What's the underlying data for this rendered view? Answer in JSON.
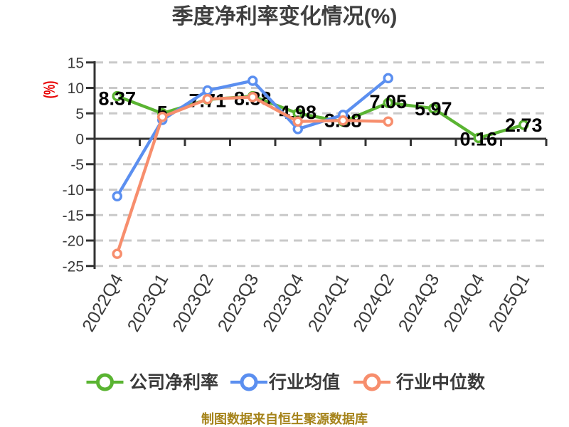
{
  "title": "季度净利率变化情况(%)",
  "y_axis_unit": "(%)",
  "caption": "制图数据来自恒生聚源数据库",
  "colors": {
    "company": "#5ab432",
    "industry_avg": "#5b8ff0",
    "industry_median": "#f78e6d",
    "grid": "#c9c9c9",
    "axis": "#333333",
    "tick_text": "#3a3a3a",
    "value_text": "#000000",
    "title_text": "#3f3f3f",
    "ylabel_text": "#e80000",
    "caption_text": "#a5831a",
    "legend_text": "#3a3a3a"
  },
  "chart_data": {
    "type": "line",
    "title": "季度净利率变化情况(%)",
    "ylabel": "(%)",
    "ylim": [
      -25,
      15
    ],
    "yticks": [
      15,
      10,
      5,
      0,
      -5,
      -10,
      -15,
      -20,
      -25
    ],
    "grid": "dashed-horizontal",
    "legend_position": "bottom",
    "categories": [
      "2022Q4",
      "2023Q1",
      "2023Q2",
      "2023Q3",
      "2023Q4",
      "2024Q1",
      "2024Q2",
      "2024Q3",
      "2024Q4",
      "2025Q1"
    ],
    "series": [
      {
        "name": "公司净利率",
        "color_key": "company",
        "values": [
          8.37,
          5,
          7.71,
          8.38,
          4.98,
          3.38,
          7.05,
          5.97,
          0.16,
          2.73
        ],
        "point_labels": [
          "8.37",
          "5",
          "7.71",
          "8.38",
          "4.98",
          "3.38",
          "7.05",
          "5.97",
          "0.16",
          "2.73"
        ]
      },
      {
        "name": "行业均值",
        "color_key": "industry_avg",
        "values": [
          -11.3,
          3.7,
          9.5,
          11.4,
          1.9,
          4.7,
          11.9,
          null,
          null,
          null
        ]
      },
      {
        "name": "行业中位数",
        "color_key": "industry_median",
        "values": [
          -22.6,
          4.3,
          7.8,
          8.2,
          3.4,
          3.6,
          3.4,
          null,
          null,
          null
        ]
      }
    ]
  }
}
